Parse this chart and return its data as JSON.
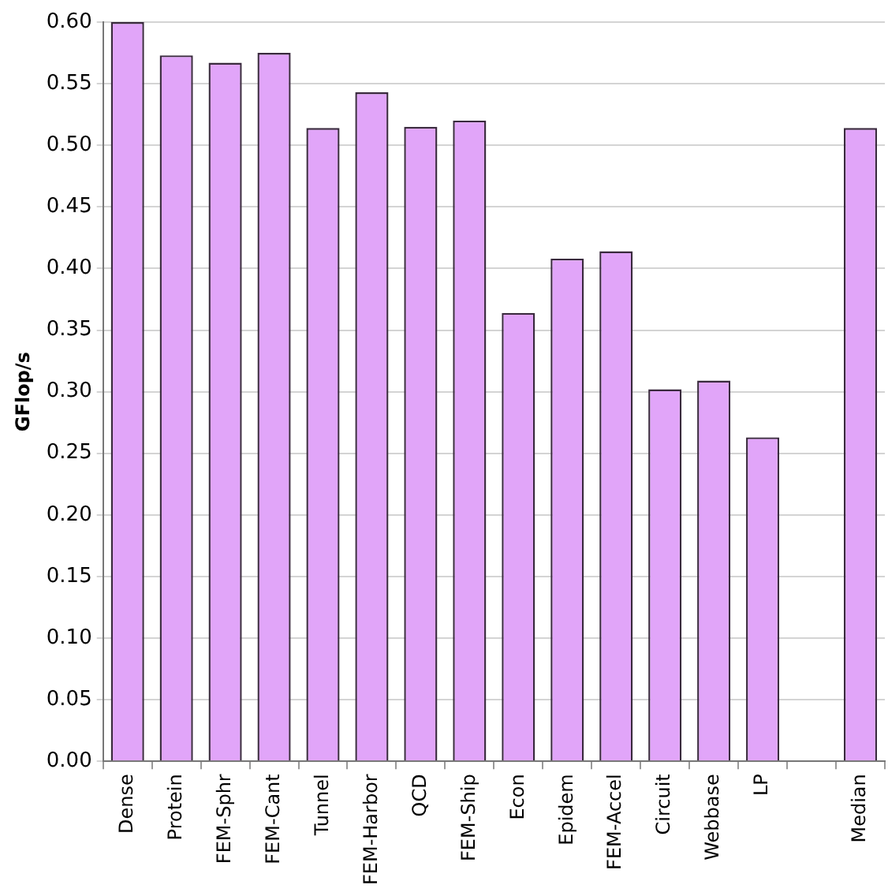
{
  "chart_data": {
    "type": "bar",
    "ylabel": "GFlop/s",
    "categories": [
      "Dense",
      "Protein",
      "FEM-Sphr",
      "FEM-Cant",
      "Tunnel",
      "FEM-Harbor",
      "QCD",
      "FEM-Ship",
      "Econ",
      "Epidem",
      "FEM-Accel",
      "Circuit",
      "Webbase",
      "LP",
      null,
      "Median"
    ],
    "values": [
      0.6,
      0.573,
      0.567,
      0.575,
      0.514,
      0.543,
      0.515,
      0.52,
      0.364,
      0.408,
      0.414,
      0.302,
      0.309,
      0.263,
      null,
      0.514
    ],
    "color": "#e1a5f9",
    "ylim": [
      0,
      0.6
    ],
    "yticks": [
      {
        "value": 0,
        "label": "0.00"
      },
      {
        "value": 0.05,
        "label": "0.05"
      },
      {
        "value": 0.1,
        "label": "0.10"
      },
      {
        "value": 0.15,
        "label": "0.15"
      },
      {
        "value": 0.2,
        "label": "0.20"
      },
      {
        "value": 0.25,
        "label": "0.25"
      },
      {
        "value": 0.3,
        "label": "0.30"
      },
      {
        "value": 0.35,
        "label": "0.35"
      },
      {
        "value": 0.4,
        "label": "0.40"
      },
      {
        "value": 0.45,
        "label": "0.45"
      },
      {
        "value": 0.5,
        "label": "0.50"
      },
      {
        "value": 0.55,
        "label": "0.55"
      },
      {
        "value": 0.6,
        "label": "0.60"
      }
    ],
    "grid": "y",
    "legend": false
  }
}
